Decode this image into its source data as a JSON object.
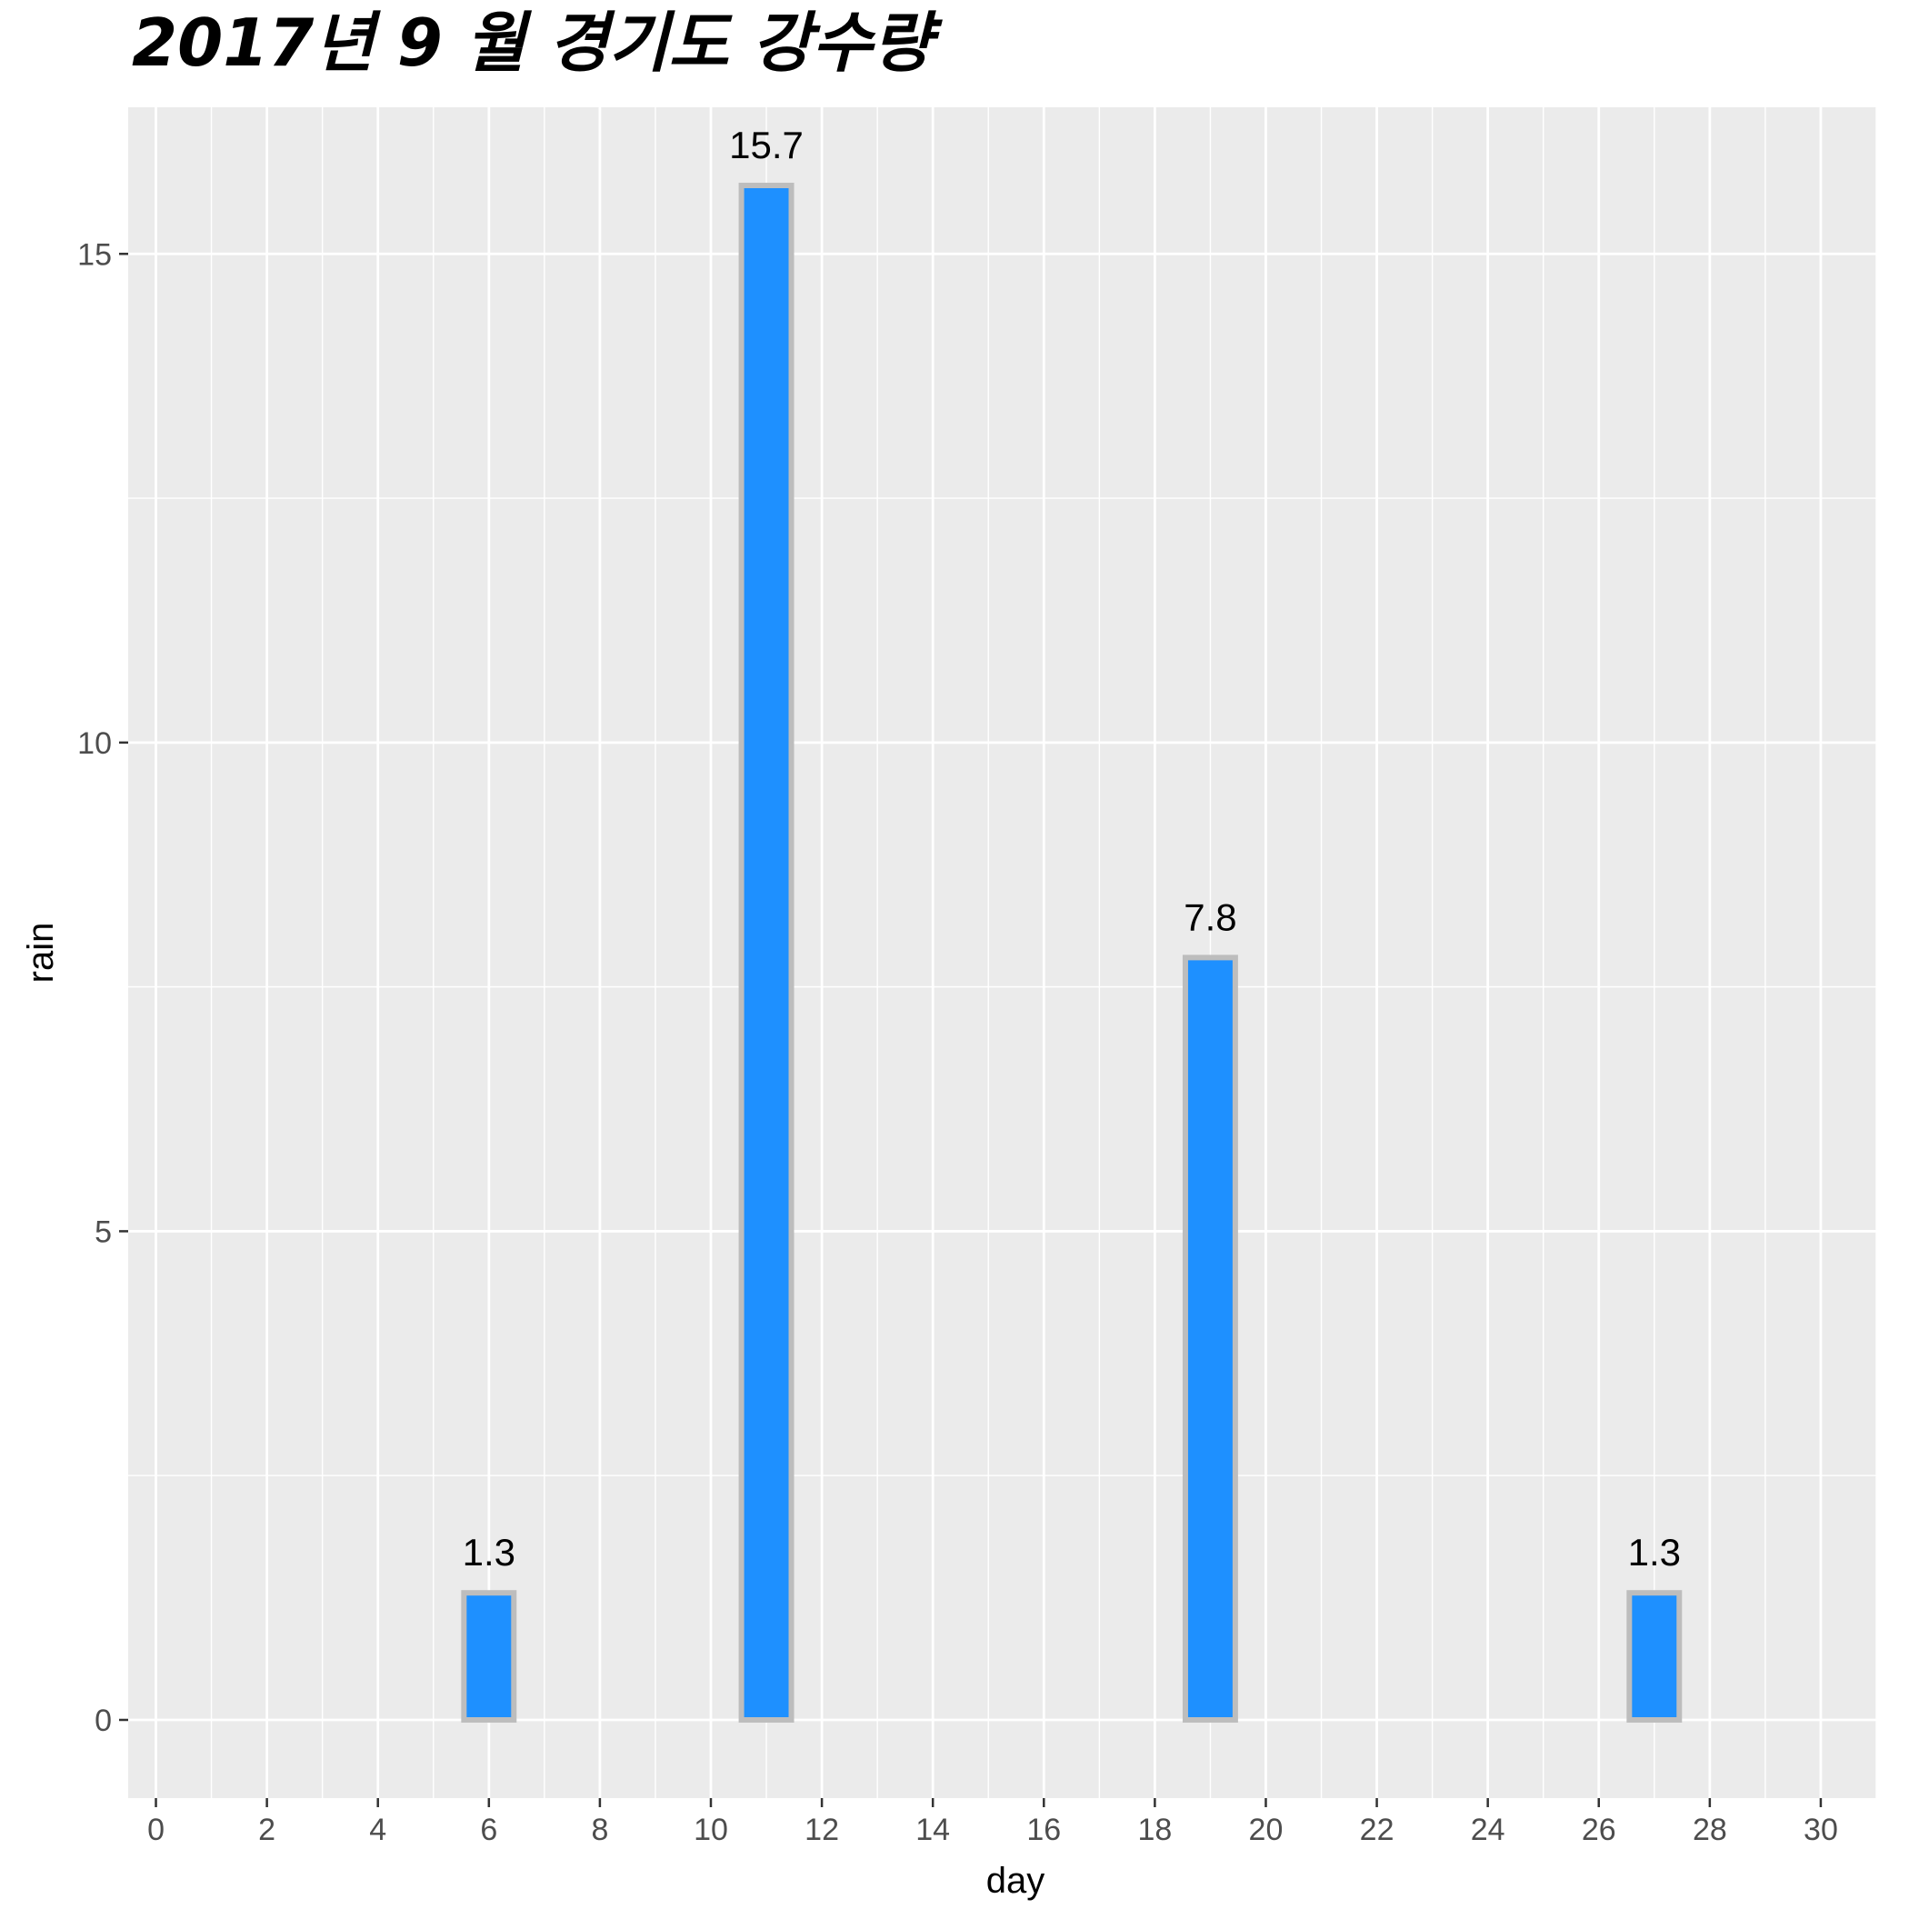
{
  "chart_data": {
    "type": "bar",
    "title": "2017년 9 월 경기도 강수량",
    "xlabel": "day",
    "ylabel": "rain",
    "x": [
      6,
      11,
      19,
      27
    ],
    "values": [
      1.3,
      15.7,
      7.8,
      1.3
    ],
    "data_labels": [
      "1.3",
      "15.7",
      "7.8",
      "1.3"
    ],
    "xlim": [
      -0.5,
      31
    ],
    "ylim": [
      -0.8,
      16.5
    ],
    "x_ticks": [
      0,
      2,
      4,
      6,
      8,
      10,
      12,
      14,
      16,
      18,
      20,
      22,
      24,
      26,
      28,
      30
    ],
    "y_ticks": [
      0,
      5,
      10,
      15
    ],
    "grid": true,
    "colors": {
      "bar_fill": "#1e90ff",
      "bar_outline": "#bdbdbd",
      "panel_background": "#ebebeb",
      "grid": "#ffffff"
    }
  }
}
